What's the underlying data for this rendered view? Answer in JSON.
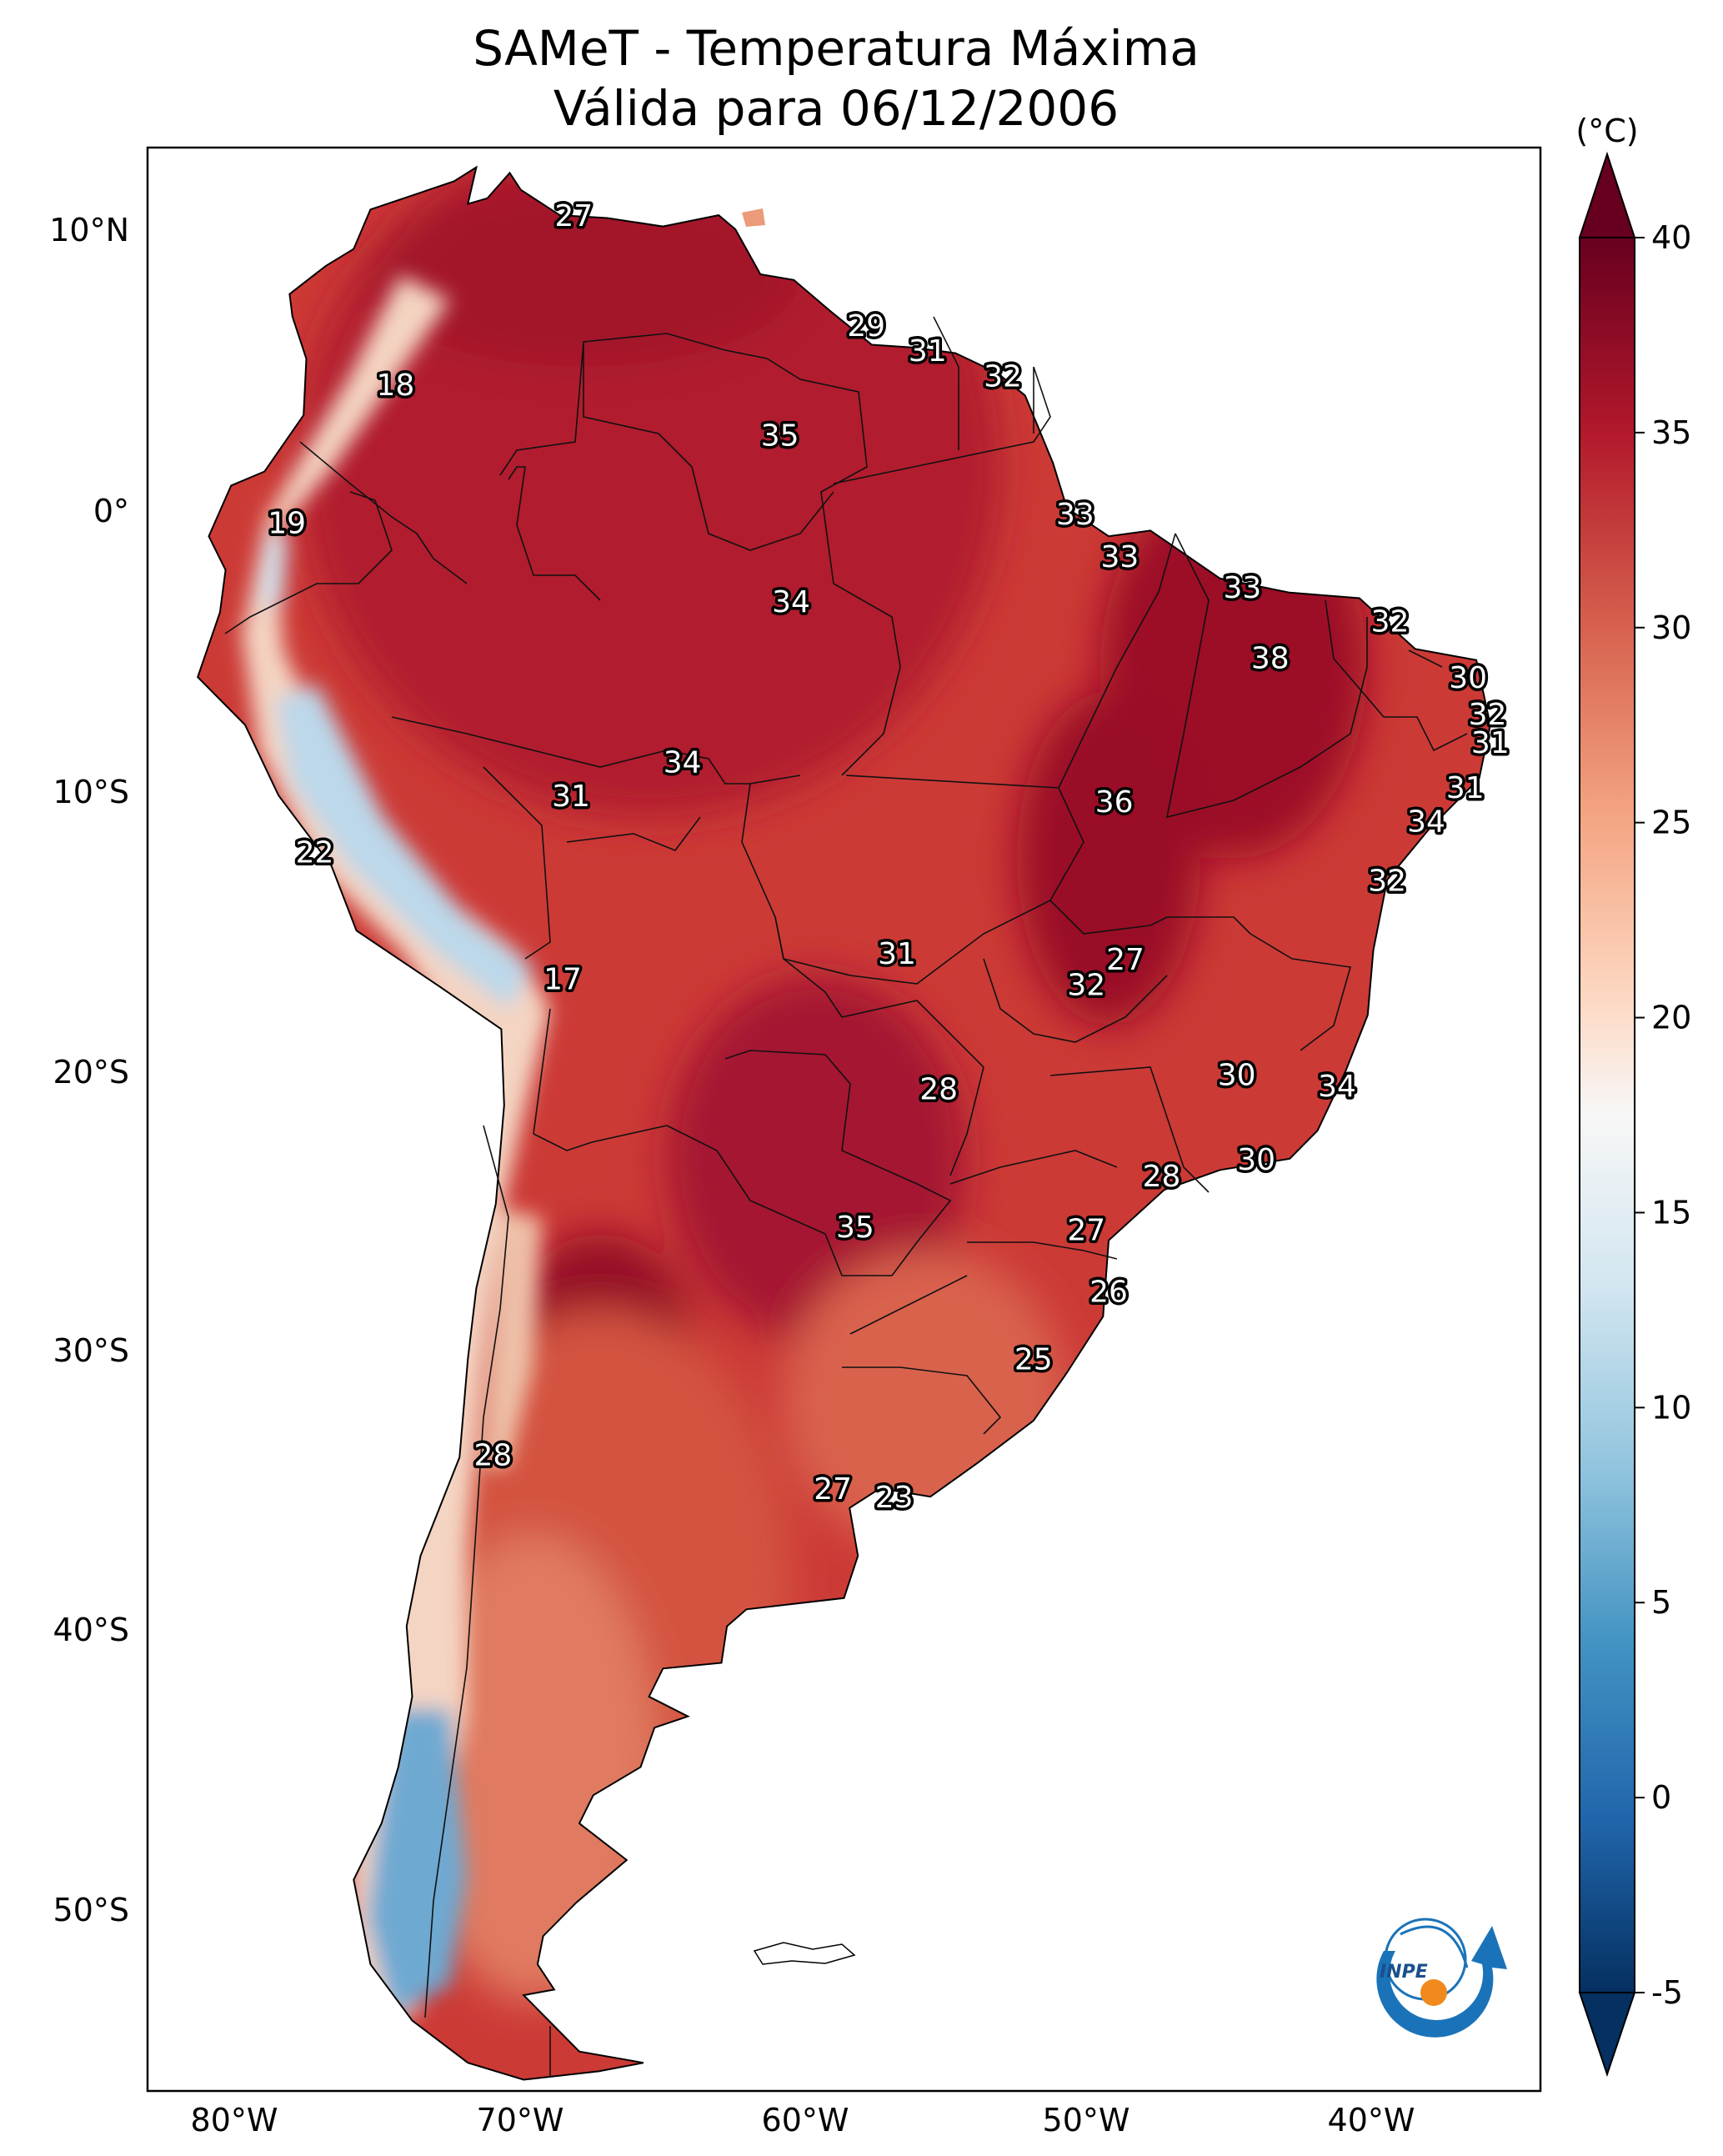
{
  "title_line1": "SAMeT - Temperatura Máxima",
  "title_line2": "Válida para 06/12/2006",
  "colorbar": {
    "unit": "(°C)",
    "min": -5,
    "max": 40,
    "ticks": [
      "40",
      "35",
      "30",
      "25",
      "20",
      "15",
      "10",
      "5",
      "0",
      "-5"
    ],
    "colors": [
      "#67001f",
      "#b2182b",
      "#d6604d",
      "#f4a582",
      "#fddbc7",
      "#f7f7f7",
      "#d1e5f0",
      "#92c5de",
      "#4393c3",
      "#2166ac",
      "#053061"
    ]
  },
  "axes": {
    "lon_labels": [
      "80°W",
      "70°W",
      "60°W",
      "50°W",
      "40°W"
    ],
    "lat_labels": [
      "10°N",
      "0°",
      "10°S",
      "20°S",
      "30°S",
      "40°S",
      "50°S"
    ]
  },
  "logo_text": "INPE",
  "chart_data": {
    "type": "map-contour",
    "variable": "Temperatura Máxima (°C)",
    "date": "06/12/2006",
    "extent_lon": [
      -83,
      -33
    ],
    "extent_lat": [
      -56,
      13
    ],
    "point_labels": [
      {
        "lon": -67.7,
        "lat": 10.6,
        "value": "27"
      },
      {
        "lon": -74.1,
        "lat": 4.6,
        "value": "18"
      },
      {
        "lon": -78.0,
        "lat": -0.3,
        "value": "19"
      },
      {
        "lon": -57.2,
        "lat": 6.7,
        "value": "29"
      },
      {
        "lon": -55.0,
        "lat": 5.8,
        "value": "31"
      },
      {
        "lon": -52.3,
        "lat": 4.9,
        "value": "32"
      },
      {
        "lon": -60.3,
        "lat": 2.8,
        "value": "35"
      },
      {
        "lon": -49.7,
        "lat": 0.0,
        "value": "33"
      },
      {
        "lon": -48.1,
        "lat": -1.5,
        "value": "33"
      },
      {
        "lon": -43.7,
        "lat": -2.6,
        "value": "33"
      },
      {
        "lon": -59.9,
        "lat": -3.1,
        "value": "34"
      },
      {
        "lon": -38.4,
        "lat": -3.8,
        "value": "32"
      },
      {
        "lon": -42.7,
        "lat": -5.1,
        "value": "38"
      },
      {
        "lon": -35.6,
        "lat": -5.8,
        "value": "30"
      },
      {
        "lon": -34.9,
        "lat": -7.1,
        "value": "32"
      },
      {
        "lon": -34.8,
        "lat": -8.1,
        "value": "31"
      },
      {
        "lon": -63.8,
        "lat": -8.8,
        "value": "34"
      },
      {
        "lon": -67.8,
        "lat": -10.0,
        "value": "31"
      },
      {
        "lon": -48.3,
        "lat": -10.2,
        "value": "36"
      },
      {
        "lon": -35.7,
        "lat": -9.7,
        "value": "31"
      },
      {
        "lon": -37.1,
        "lat": -10.9,
        "value": "34"
      },
      {
        "lon": -77.0,
        "lat": -12.0,
        "value": "22"
      },
      {
        "lon": -38.5,
        "lat": -13.0,
        "value": "32"
      },
      {
        "lon": -56.1,
        "lat": -15.6,
        "value": "31"
      },
      {
        "lon": -47.9,
        "lat": -15.8,
        "value": "27"
      },
      {
        "lon": -49.3,
        "lat": -16.7,
        "value": "32"
      },
      {
        "lon": -68.1,
        "lat": -16.5,
        "value": "17"
      },
      {
        "lon": -54.6,
        "lat": -20.4,
        "value": "28"
      },
      {
        "lon": -43.9,
        "lat": -19.9,
        "value": "30"
      },
      {
        "lon": -40.3,
        "lat": -20.3,
        "value": "34"
      },
      {
        "lon": -43.2,
        "lat": -22.9,
        "value": "30"
      },
      {
        "lon": -46.6,
        "lat": -23.5,
        "value": "28"
      },
      {
        "lon": -57.6,
        "lat": -25.3,
        "value": "35"
      },
      {
        "lon": -49.3,
        "lat": -25.4,
        "value": "27"
      },
      {
        "lon": -48.5,
        "lat": -27.6,
        "value": "26"
      },
      {
        "lon": -51.2,
        "lat": -30.0,
        "value": "25"
      },
      {
        "lon": -70.6,
        "lat": -33.4,
        "value": "28"
      },
      {
        "lon": -58.4,
        "lat": -34.6,
        "value": "27"
      },
      {
        "lon": -56.2,
        "lat": -34.9,
        "value": "23"
      }
    ]
  }
}
